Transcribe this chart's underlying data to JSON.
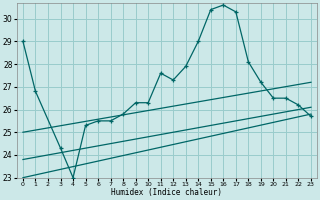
{
  "xlabel": "Humidex (Indice chaleur)",
  "background_color": "#cce8e8",
  "grid_color": "#99cccc",
  "line_color": "#006666",
  "xlim": [
    -0.5,
    23.5
  ],
  "ylim": [
    23,
    30.7
  ],
  "yticks": [
    23,
    24,
    25,
    26,
    27,
    28,
    29,
    30
  ],
  "xticks": [
    0,
    1,
    2,
    3,
    4,
    5,
    6,
    7,
    8,
    9,
    10,
    11,
    12,
    13,
    14,
    15,
    16,
    17,
    18,
    19,
    20,
    21,
    22,
    23
  ],
  "main_x": [
    0,
    1,
    3,
    4,
    5,
    6,
    7,
    8,
    9,
    10,
    11,
    12,
    13,
    14,
    15,
    16,
    17,
    18,
    19,
    20,
    21,
    22,
    23
  ],
  "main_y": [
    29.0,
    26.8,
    24.3,
    23.0,
    25.3,
    25.5,
    25.5,
    25.8,
    26.3,
    26.3,
    27.6,
    27.3,
    27.9,
    29.0,
    30.4,
    30.6,
    30.3,
    28.1,
    27.2,
    26.5,
    26.5,
    26.2,
    25.7
  ],
  "line1_x": [
    0,
    23
  ],
  "line1_y": [
    23.0,
    25.8
  ],
  "line2_x": [
    0,
    23
  ],
  "line2_y": [
    23.8,
    26.1
  ],
  "line3_x": [
    0,
    23
  ],
  "line3_y": [
    25.0,
    27.2
  ]
}
